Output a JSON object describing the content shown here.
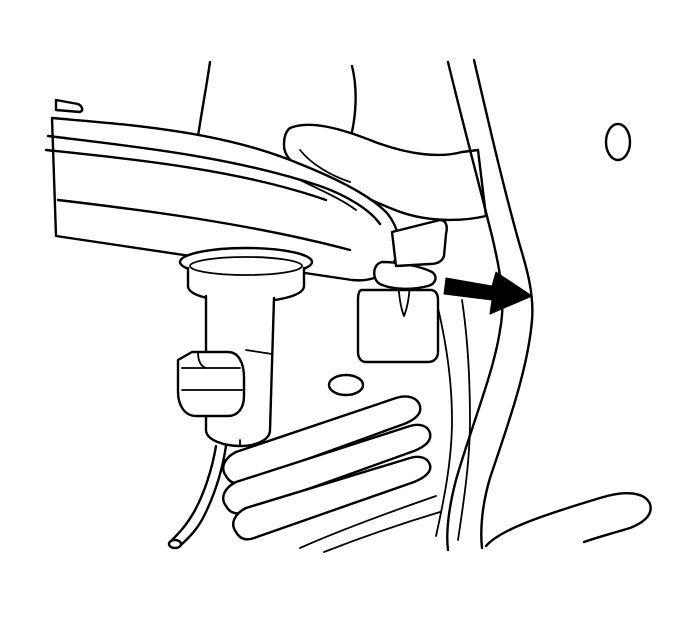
{
  "diagram": {
    "style": "black line-art technical illustration on white background",
    "colors": {
      "background": "#ffffff",
      "line": "#000000",
      "arrow": "#000000"
    },
    "components": [
      "lever-arm",
      "pivot-bushing",
      "sensor-body",
      "wire-lead",
      "retaining-clip",
      "mounting-bracket",
      "floor-panel-ribs",
      "pillar-panel",
      "direction-arrow"
    ],
    "arrow_direction": "right"
  }
}
